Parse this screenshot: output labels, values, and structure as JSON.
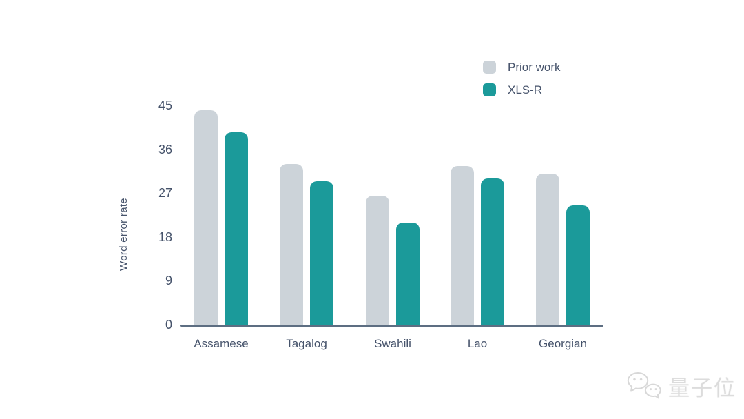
{
  "chart_data": {
    "type": "bar",
    "title": "",
    "categories": [
      "Assamese",
      "Tagalog",
      "Swahili",
      "Lao",
      "Georgian"
    ],
    "series": [
      {
        "name": "Prior work",
        "color": "#ccd3d9",
        "values": [
          44,
          33,
          26.5,
          32.5,
          31
        ]
      },
      {
        "name": "XLS-R",
        "color": "#1b9a9a",
        "values": [
          39.5,
          29.5,
          21,
          30,
          24.5
        ]
      }
    ],
    "xlabel": "",
    "ylabel": "Word error rate",
    "yticks": [
      0,
      9,
      18,
      27,
      36,
      45
    ],
    "ylim": [
      0,
      45
    ],
    "grid": false,
    "legend_position": "top-right"
  },
  "colors": {
    "background": "#ffffff",
    "text": "#46536b",
    "axis_line": "#5d6e82",
    "prior_work_bar": "#ccd3d9",
    "xlsr_bar": "#1b9a9a",
    "watermark": "#dcdcdc"
  },
  "watermark": {
    "text": "量子位",
    "icon": "wechat-icon"
  }
}
